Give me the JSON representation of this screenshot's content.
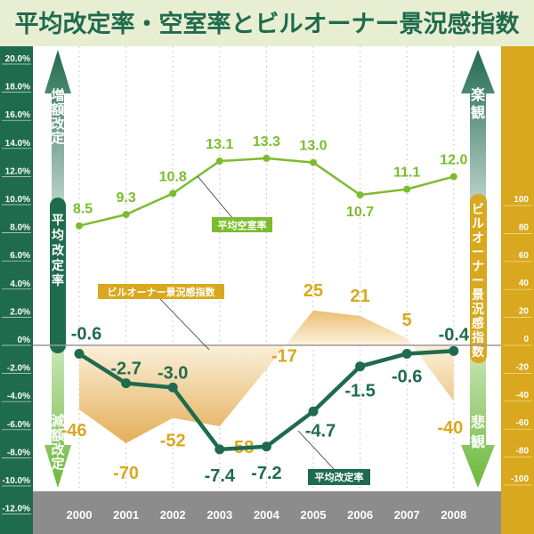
{
  "title": "平均改定率・空室率とビルオーナー景況感指数",
  "colors": {
    "title_bg": "#e8eed2",
    "title_text": "#1f6b4e",
    "rent": "#1f6b4e",
    "vacancy": "#7cbc2e",
    "boi": "#d9a81e",
    "left_panel": "#1f6b4e",
    "right_panel": "#d9a81e",
    "xaxis_bar": "#8c8c8c"
  },
  "left_arrow": {
    "top": "増額改定",
    "middle": "平均改定率",
    "bottom": "減額改定"
  },
  "right_arrow": {
    "top": "楽観",
    "middle": "ビルオーナー景況感指数",
    "bottom": "悲観"
  },
  "chart_data": {
    "type": "line",
    "title": "平均改定率・空室率とビルオーナー景況感指数",
    "categories": [
      "2000",
      "2001",
      "2002",
      "2003",
      "2004",
      "2005",
      "2006",
      "2007",
      "2008"
    ],
    "left_axis": {
      "range": [
        -12,
        20
      ],
      "ticks": [
        "20.0%",
        "18.0%",
        "16.0%",
        "14.0%",
        "12.0%",
        "10.0%",
        "8.0%",
        "6.0%",
        "4.0%",
        "2.0%",
        "0%",
        "-2.0%",
        "-4.0%",
        "-6.0%",
        "-8.0%",
        "-10.0%",
        "-12.0%"
      ],
      "tick_values": [
        20,
        18,
        16,
        14,
        12,
        10,
        8,
        6,
        4,
        2,
        0,
        -2,
        -4,
        -6,
        -8,
        -10,
        -12
      ]
    },
    "right_axis": {
      "range": [
        -100,
        100
      ],
      "ticks": [
        "100",
        "80",
        "60",
        "40",
        "20",
        "0",
        "-20",
        "-40",
        "-60",
        "-80",
        "-100"
      ],
      "tick_values": [
        100,
        80,
        60,
        40,
        20,
        0,
        -20,
        -40,
        -60,
        -80,
        -100
      ]
    },
    "grid": "vertical dotted",
    "series": [
      {
        "name": "平均空室率",
        "axis": "left",
        "type": "line",
        "values": [
          8.5,
          9.3,
          10.8,
          13.1,
          13.3,
          13.0,
          10.7,
          11.1,
          12.0
        ],
        "labels": [
          "8.5",
          "9.3",
          "10.8",
          "13.1",
          "13.3",
          "13.0",
          "10.7",
          "11.1",
          "12.0"
        ]
      },
      {
        "name": "平均改定率",
        "axis": "left",
        "type": "line",
        "values": [
          -0.6,
          -2.7,
          -3.0,
          -7.4,
          -7.2,
          -4.7,
          -1.5,
          -0.6,
          -0.4
        ],
        "labels": [
          "-0.6",
          "-2.7",
          "-3.0",
          "-7.4",
          "-7.2",
          "-4.7",
          "-1.5",
          "-0.6",
          "-0.4"
        ]
      },
      {
        "name": "ビルオーナー景況感指数",
        "axis": "right",
        "type": "area",
        "values": [
          -46,
          -70,
          -52,
          -58,
          -17,
          25,
          21,
          5,
          -40
        ],
        "labels": [
          "-46",
          "-70",
          "-52",
          "-58",
          "-17",
          "25",
          "21",
          "5",
          "-40"
        ]
      }
    ]
  }
}
